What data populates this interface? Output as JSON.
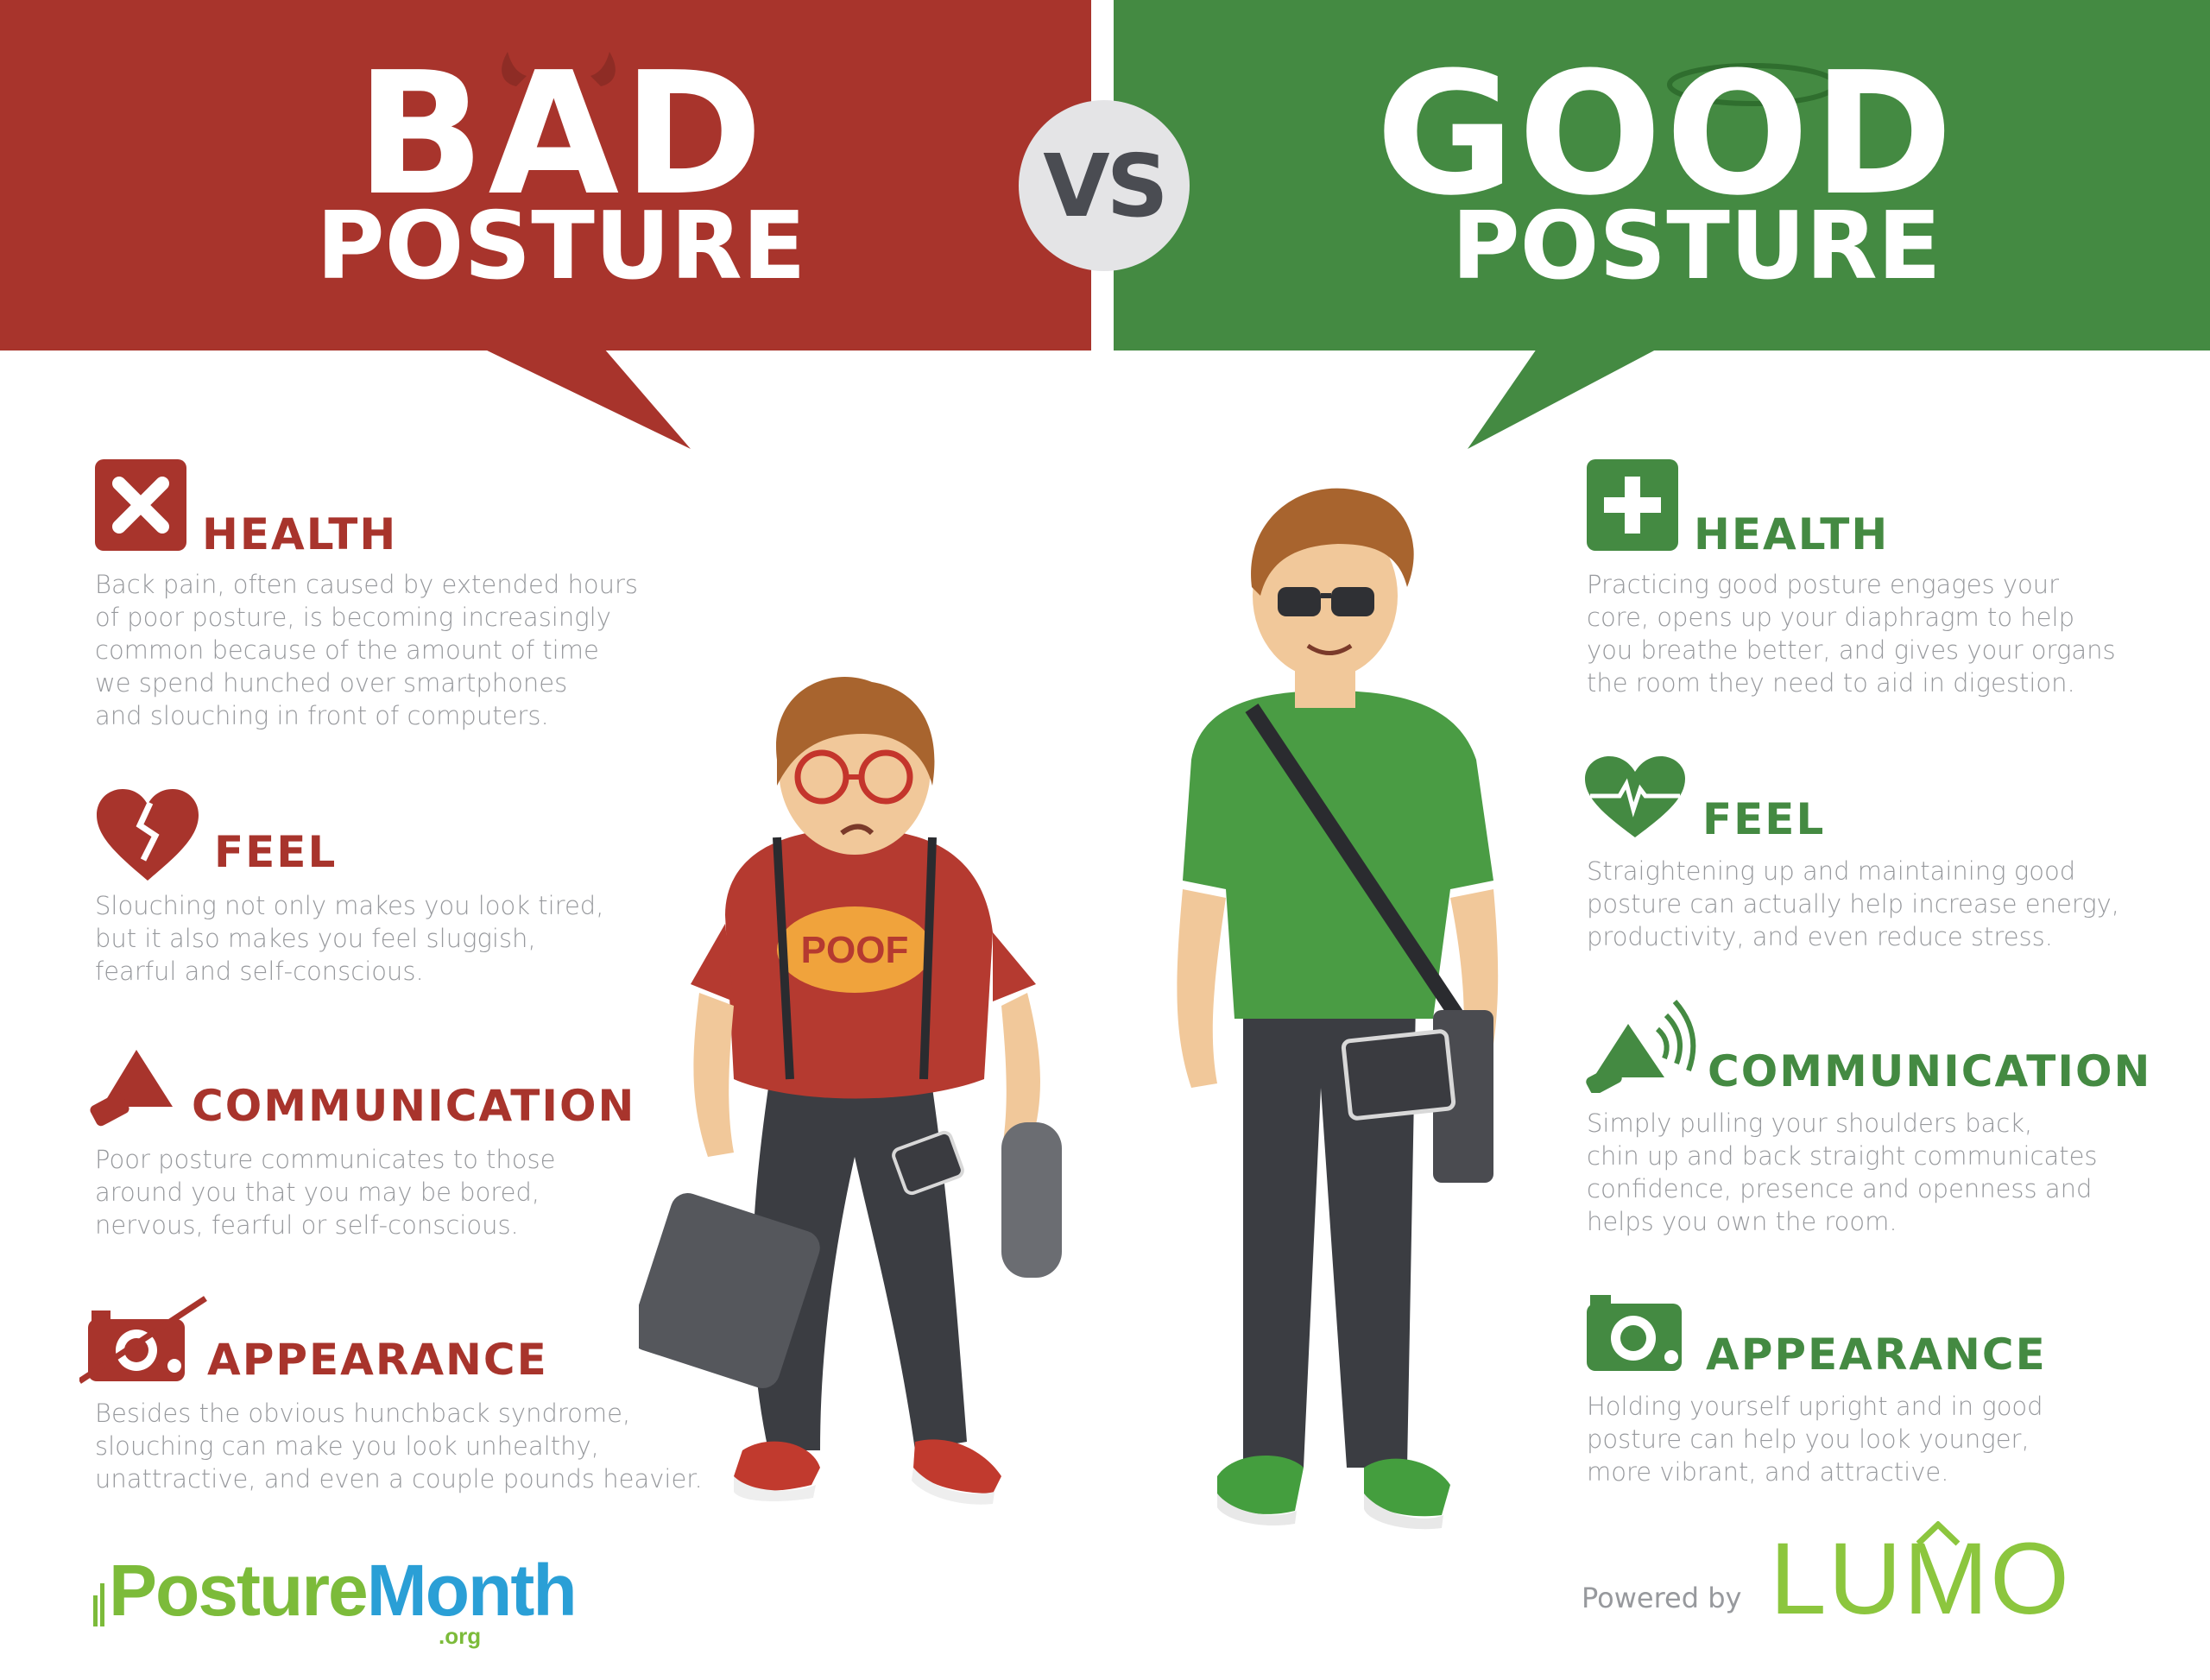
{
  "header": {
    "bad_big": "BAD",
    "bad_small": "POSTURE",
    "vs": "VS",
    "good_big": "GOOD",
    "good_small": "POSTURE"
  },
  "colors": {
    "bad": "#a8342c",
    "good": "#448a42",
    "body_text": "#97999d"
  },
  "bad": {
    "health": {
      "title": "HEALTH",
      "icon": "x-square-icon",
      "body": "Back pain, often caused by extended hours\nof poor posture, is becoming increasingly\ncommon because of the amount of time\nwe spend hunched over smartphones\nand slouching in front of computers."
    },
    "feel": {
      "title": "FEEL",
      "icon": "broken-heart-icon",
      "body": "Slouching not only makes you look tired,\nbut it also makes you feel sluggish,\nfearful and self-conscious."
    },
    "communication": {
      "title": "COMMUNICATION",
      "icon": "megaphone-icon",
      "body": "Poor posture communicates to those\naround you that you may be bored,\nnervous, fearful or self-conscious."
    },
    "appearance": {
      "title": "APPEARANCE",
      "icon": "camera-crossed-icon",
      "body": "Besides the obvious hunchback syndrome,\nslouching can make you look unhealthy,\nunattractive, and even a couple pounds heavier."
    }
  },
  "good": {
    "health": {
      "title": "HEALTH",
      "icon": "plus-square-icon",
      "body": "Practicing good posture engages your\ncore, opens up your diaphragm to help\nyou breathe better, and gives your organs\nthe room they need to aid in digestion."
    },
    "feel": {
      "title": "FEEL",
      "icon": "heartbeat-icon",
      "body": "Straightening up and maintaining good\nposture can actually help increase energy,\nproductivity, and even reduce stress."
    },
    "communication": {
      "title": "COMMUNICATION",
      "icon": "megaphone-loud-icon",
      "body": "Simply pulling your shoulders back,\nchin up and back straight communicates\nconfidence, presence and openness and\nhelps you own the room."
    },
    "appearance": {
      "title": "APPEARANCE",
      "icon": "camera-icon",
      "body": "Holding yourself upright and in good\nposture can help you look younger,\nmore vibrant, and attractive."
    }
  },
  "footer": {
    "brand_posture": "Posture",
    "brand_month": "Month",
    "brand_org": ".org",
    "powered_by": "Powered by",
    "lumo": "LUMO"
  }
}
